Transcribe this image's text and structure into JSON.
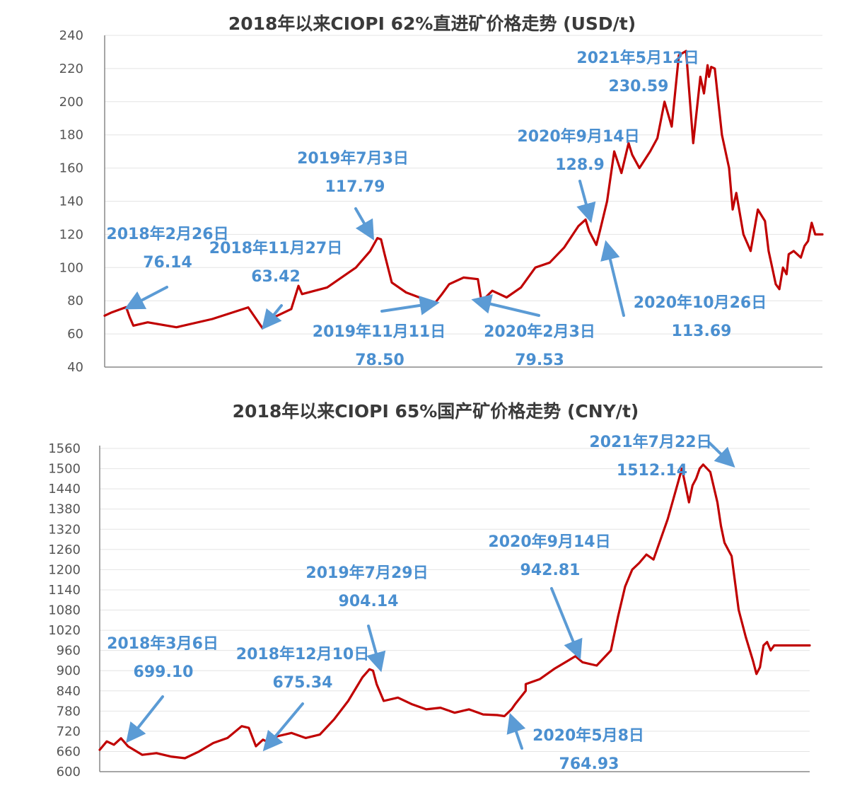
{
  "chart_data": [
    {
      "type": "line",
      "title": "2018年以来CIOPI 62%直进矿价格走势 (USD/t)",
      "xlabel": "",
      "ylabel": "USD/t",
      "ylim": [
        40,
        240
      ],
      "y_ticks": [
        "240",
        "220",
        "200",
        "180",
        "160",
        "140",
        "120",
        "100",
        "80",
        "60",
        "40"
      ],
      "grid": true,
      "series": [
        {
          "name": "CIOPI 62%直进矿",
          "t": [
            0,
            0.01,
            0.03,
            0.035,
            0.04,
            0.06,
            0.1,
            0.15,
            0.2,
            0.22,
            0.226,
            0.26,
            0.27,
            0.275,
            0.31,
            0.34,
            0.35,
            0.37,
            0.38,
            0.385,
            0.39,
            0.4,
            0.42,
            0.46,
            0.47,
            0.48,
            0.5,
            0.52,
            0.525,
            0.54,
            0.56,
            0.58,
            0.6,
            0.62,
            0.64,
            0.66,
            0.67,
            0.675,
            0.685,
            0.69,
            0.7,
            0.71,
            0.72,
            0.73,
            0.735,
            0.745,
            0.76,
            0.77,
            0.78,
            0.79,
            0.8,
            0.81,
            0.82,
            0.83,
            0.835,
            0.84,
            0.842,
            0.845,
            0.85,
            0.855,
            0.86,
            0.87,
            0.875,
            0.88,
            0.89,
            0.9,
            0.91,
            0.92,
            0.925,
            0.93,
            0.935,
            0.94,
            0.945,
            0.95,
            0.953,
            0.96,
            0.97,
            0.975,
            0.98,
            0.985,
            0.99,
            1.0
          ],
          "values": [
            71,
            73,
            76.14,
            70,
            65,
            67,
            64,
            69,
            76,
            63.42,
            68,
            75,
            89,
            84,
            88,
            97,
            100,
            110,
            117.79,
            117,
            108,
            91,
            85,
            78.5,
            84,
            90,
            94,
            93,
            79.53,
            86,
            82,
            88,
            100,
            103,
            112,
            125,
            128.9,
            122,
            113.69,
            122,
            140,
            170,
            157,
            175,
            168,
            160,
            170,
            178,
            200,
            185,
            228,
            230.59,
            175,
            215,
            205,
            222,
            215,
            221,
            220,
            200,
            180,
            160,
            135,
            145,
            120,
            110,
            135,
            128,
            110,
            100,
            90,
            87,
            100,
            96,
            108,
            110,
            106,
            113,
            116,
            127,
            120,
            120
          ]
        }
      ],
      "annotations": [
        {
          "label": "2018年2月26日",
          "value": "76.14"
        },
        {
          "label": "2018年11月27日",
          "value": "63.42"
        },
        {
          "label": "2019年7月3日",
          "value": "117.79"
        },
        {
          "label": "2019年11月11日",
          "value": "78.50"
        },
        {
          "label": "2020年2月3日",
          "value": "79.53"
        },
        {
          "label": "2020年9月14日",
          "value": "128.9"
        },
        {
          "label": "2020年10月26日",
          "value": "113.69"
        },
        {
          "label": "2021年5月12日",
          "value": "230.59"
        }
      ]
    },
    {
      "type": "line",
      "title": "2018年以来CIOPI 65%国产矿价格走势 (CNY/t)",
      "xlabel": "",
      "ylabel": "CNY/t",
      "ylim": [
        600,
        1560
      ],
      "y_ticks": [
        "1560",
        "1500",
        "1440",
        "1380",
        "1320",
        "1260",
        "1200",
        "1140",
        "1080",
        "1020",
        "960",
        "900",
        "840",
        "780",
        "720",
        "660",
        "600"
      ],
      "grid": true,
      "series": [
        {
          "name": "CIOPI 65%国产矿",
          "t": [
            0,
            0.01,
            0.02,
            0.03,
            0.04,
            0.06,
            0.08,
            0.1,
            0.12,
            0.14,
            0.16,
            0.18,
            0.2,
            0.21,
            0.22,
            0.23,
            0.235,
            0.25,
            0.27,
            0.29,
            0.31,
            0.33,
            0.35,
            0.37,
            0.38,
            0.385,
            0.39,
            0.4,
            0.42,
            0.44,
            0.46,
            0.48,
            0.5,
            0.52,
            0.54,
            0.56,
            0.57,
            0.58,
            0.585,
            0.6,
            0.6,
            0.62,
            0.64,
            0.66,
            0.67,
            0.68,
            0.7,
            0.72,
            0.73,
            0.74,
            0.75,
            0.76,
            0.77,
            0.78,
            0.8,
            0.82,
            0.83,
            0.835,
            0.84,
            0.845,
            0.85,
            0.86,
            0.87,
            0.875,
            0.88,
            0.885,
            0.89,
            0.9,
            0.91,
            0.92,
            0.925,
            0.93,
            0.935,
            0.94,
            0.945,
            0.95,
            0.96,
            0.97,
            0.975,
            0.98,
            1.0
          ],
          "values": [
            665,
            690,
            680,
            699.1,
            675,
            650,
            655,
            645,
            640,
            660,
            685,
            700,
            735,
            730,
            675.34,
            695,
            690,
            705,
            715,
            700,
            710,
            755,
            810,
            880,
            904.14,
            900,
            860,
            810,
            820,
            800,
            785,
            790,
            775,
            785,
            770,
            768,
            764.93,
            785,
            800,
            840,
            860,
            875,
            905,
            930,
            942.81,
            925,
            915,
            960,
            1060,
            1150,
            1200,
            1220,
            1245,
            1230,
            1350,
            1500,
            1400,
            1450,
            1470,
            1500,
            1512.14,
            1490,
            1400,
            1330,
            1280,
            1260,
            1240,
            1080,
            1000,
            930,
            890,
            910,
            975,
            985,
            960,
            975,
            975,
            975,
            975,
            975,
            975
          ]
        }
      ],
      "annotations": [
        {
          "label": "2018年3月6日",
          "value": "699.10"
        },
        {
          "label": "2018年12月10日",
          "value": "675.34"
        },
        {
          "label": "2019年7月29日",
          "value": "904.14"
        },
        {
          "label": "2020年5月8日",
          "value": "764.93"
        },
        {
          "label": "2020年9月14日",
          "value": "942.81"
        },
        {
          "label": "2021年7月22日",
          "value": "1512.14"
        }
      ]
    }
  ]
}
